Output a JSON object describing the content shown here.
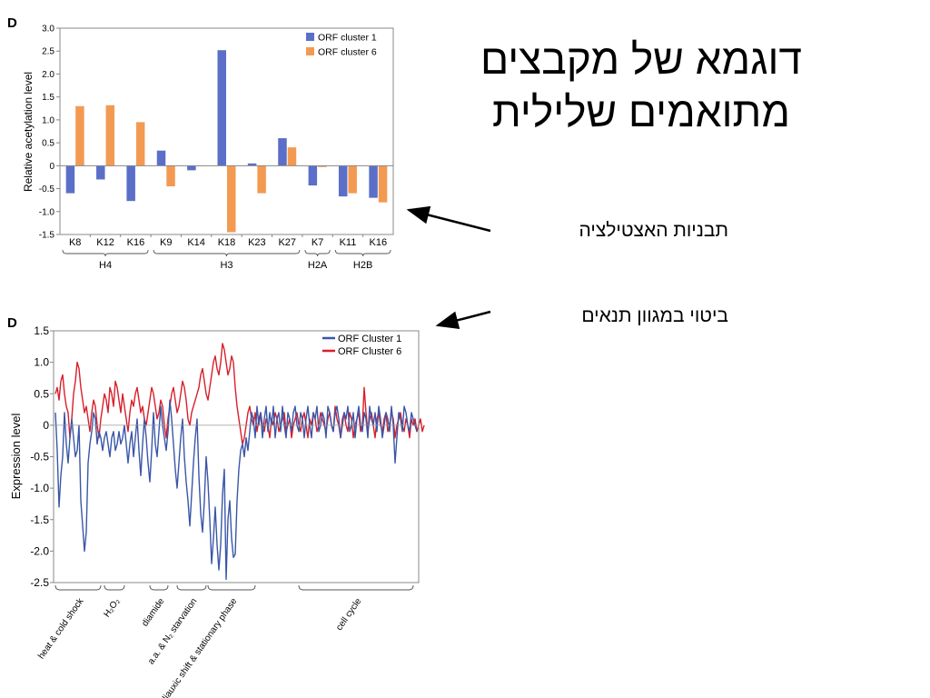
{
  "slide": {
    "title_line1": "דוגמא של מקבצים",
    "title_line2": "מתואמים שלילית",
    "label_acetylation": "תבניות האצטילציה",
    "label_expression": "ביטוי במגוון תנאים"
  },
  "chart_data": [
    {
      "type": "bar",
      "panel_letter": "D",
      "ylabel": "Relative acetylation level",
      "ylim": [
        -1.5,
        3.0
      ],
      "yticks": [
        "-1.5",
        "-1.0",
        "-0.5",
        "0",
        "0.5",
        "1.0",
        "1.5",
        "2.0",
        "2.5",
        "3.0"
      ],
      "categories": [
        "K8",
        "K12",
        "K16",
        "K9",
        "K14",
        "K18",
        "K23",
        "K27",
        "K7",
        "K11",
        "K16"
      ],
      "groups": [
        {
          "label": "H4",
          "start": 0,
          "end": 2
        },
        {
          "label": "H3",
          "start": 3,
          "end": 7
        },
        {
          "label": "H2A",
          "start": 8,
          "end": 8
        },
        {
          "label": "H2B",
          "start": 9,
          "end": 10
        }
      ],
      "series": [
        {
          "name": "ORF cluster 1",
          "color": "#5b6fc8",
          "values": [
            -0.6,
            -0.3,
            -0.77,
            0.33,
            -0.1,
            2.52,
            0.05,
            0.6,
            -0.43,
            -0.67,
            -0.7
          ]
        },
        {
          "name": "ORF cluster 6",
          "color": "#f39a52",
          "values": [
            1.3,
            1.32,
            0.95,
            -0.45,
            0.0,
            -1.45,
            -0.6,
            0.4,
            -0.03,
            -0.6,
            -0.8
          ]
        }
      ],
      "legend_position": "top-right"
    },
    {
      "type": "line",
      "panel_letter": "D",
      "ylabel": "Expression level",
      "ylim": [
        -2.5,
        1.5
      ],
      "yticks": [
        "-2.5",
        "-2.0",
        "-1.5",
        "-1.0",
        "-0.5",
        "0",
        "0.5",
        "1.0",
        "1.5"
      ],
      "conditions": [
        {
          "label": "heat & cold shock",
          "start": 0,
          "end": 25
        },
        {
          "label": "H₂O₂",
          "start": 27,
          "end": 38
        },
        {
          "label": "diamide",
          "start": 52,
          "end": 62
        },
        {
          "label": "a.a. & N₂ starvation",
          "start": 67,
          "end": 83
        },
        {
          "label": "diauxic  shift & stationary phase",
          "start": 84,
          "end": 110
        },
        {
          "label": "cell cycle",
          "start": 134,
          "end": 197
        }
      ],
      "x_count": 200,
      "series": [
        {
          "name": "ORF Cluster 1",
          "color": "#3a56a8",
          "values": [
            0.2,
            -0.4,
            -1.3,
            -0.8,
            -0.5,
            0.2,
            -0.3,
            -0.6,
            -0.2,
            0.1,
            -0.2,
            -0.5,
            -0.4,
            0.0,
            -1.2,
            -1.6,
            -2.0,
            -1.7,
            -0.6,
            -0.3,
            -0.1,
            0.2,
            0.1,
            -0.3,
            -0.1,
            -0.2,
            -0.4,
            -0.2,
            -0.1,
            -0.3,
            -0.5,
            -0.2,
            -0.1,
            -0.4,
            -0.3,
            -0.1,
            -0.3,
            -0.2,
            0.0,
            -0.3,
            -0.6,
            -0.3,
            -0.1,
            -0.5,
            -0.2,
            0.1,
            -0.4,
            -0.8,
            -0.3,
            0.1,
            -0.2,
            -0.6,
            -0.9,
            -0.4,
            0.2,
            -0.3,
            -0.5,
            -0.1,
            0.3,
            0.0,
            -0.2,
            -0.4,
            -0.1,
            0.4,
            0.1,
            -0.3,
            -0.7,
            -1.0,
            -0.6,
            -0.2,
            0.1,
            -0.5,
            -0.9,
            -1.2,
            -1.6,
            -1.1,
            -0.6,
            -0.2,
            0.1,
            -0.8,
            -1.4,
            -1.7,
            -1.2,
            -0.5,
            -0.9,
            -1.5,
            -2.2,
            -1.8,
            -1.3,
            -1.9,
            -2.3,
            -1.9,
            -1.1,
            -0.7,
            -2.45,
            -1.5,
            -1.2,
            -1.8,
            -2.1,
            -2.05,
            -1.2,
            -0.7,
            -0.4,
            -0.3,
            -0.5,
            -0.2,
            -0.4,
            -0.1,
            0.2,
            0.1,
            -0.2,
            0.3,
            0.0,
            0.2,
            -0.2,
            0.1,
            0.3,
            -0.1,
            0.2,
            0.0,
            0.3,
            -0.2,
            0.1,
            0.2,
            -0.1,
            0.3,
            0.0,
            -0.2,
            0.2,
            0.1,
            -0.1,
            0.2,
            0.3,
            0.0,
            -0.1,
            0.2,
            0.1,
            -0.2,
            0.1,
            0.3,
            0.0,
            -0.2,
            0.2,
            0.1,
            0.3,
            -0.1,
            0.0,
            0.2,
            0.1,
            -0.2,
            0.3,
            0.2,
            0.0,
            -0.1,
            0.2,
            0.3,
            0.1,
            -0.2,
            0.0,
            0.2,
            0.1,
            0.3,
            -0.1,
            0.0,
            0.2,
            -0.2,
            0.1,
            0.3,
            0.0,
            -0.1,
            0.2,
            0.1,
            -0.2,
            0.3,
            0.1,
            0.0,
            0.2,
            -0.1,
            0.3,
            0.1,
            -0.2,
            0.0,
            0.2,
            0.1,
            -0.1,
            0.3,
            0.0,
            -0.6,
            -0.2,
            0.2,
            0.1,
            -0.1,
            0.3,
            0.2,
            0.0,
            -0.1,
            0.2,
            0.1,
            0.0,
            -0.1
          ]
        },
        {
          "name": "ORF Cluster 6",
          "color": "#d81f2a",
          "values": [
            0.5,
            0.6,
            0.4,
            0.7,
            0.8,
            0.5,
            0.3,
            0.2,
            -0.2,
            0.1,
            0.5,
            0.7,
            1.0,
            0.9,
            0.6,
            0.4,
            0.2,
            0.3,
            0.1,
            -0.1,
            0.2,
            0.4,
            0.3,
            0.0,
            -0.2,
            0.1,
            0.3,
            0.5,
            0.4,
            0.2,
            0.6,
            0.5,
            0.3,
            0.7,
            0.6,
            0.4,
            0.2,
            0.5,
            0.3,
            0.1,
            -0.1,
            0.2,
            0.4,
            0.3,
            0.5,
            0.6,
            0.4,
            0.2,
            0.3,
            0.1,
            0.0,
            0.2,
            0.4,
            0.6,
            0.5,
            0.3,
            0.1,
            0.2,
            0.4,
            0.3,
            0.0,
            -0.2,
            0.1,
            0.3,
            0.5,
            0.6,
            0.4,
            0.2,
            0.3,
            0.5,
            0.7,
            0.6,
            0.4,
            0.1,
            0.0,
            0.2,
            0.3,
            0.4,
            0.5,
            0.6,
            0.8,
            0.9,
            0.7,
            0.5,
            0.4,
            0.6,
            0.8,
            1.0,
            1.1,
            0.9,
            0.8,
            1.0,
            1.3,
            1.2,
            1.0,
            0.8,
            0.9,
            1.1,
            1.0,
            0.6,
            0.3,
            0.1,
            -0.1,
            -0.3,
            -0.2,
            0.0,
            0.2,
            0.3,
            0.1,
            0.0,
            0.2,
            -0.1,
            0.1,
            0.2,
            0.0,
            -0.1,
            0.1,
            0.0,
            -0.2,
            0.1,
            0.0,
            0.2,
            0.1,
            -0.1,
            0.0,
            0.1,
            0.2,
            -0.1,
            0.0,
            0.1,
            -0.2,
            0.0,
            0.1,
            0.2,
            0.0,
            -0.1,
            0.1,
            0.2,
            0.0,
            -0.2,
            0.1,
            0.0,
            0.2,
            0.1,
            -0.1,
            0.0,
            0.2,
            0.1,
            0.0,
            -0.1,
            0.1,
            0.2,
            0.0,
            -0.1,
            0.3,
            0.1,
            0.0,
            -0.2,
            0.1,
            0.2,
            0.0,
            -0.1,
            0.2,
            0.1,
            -0.2,
            0.0,
            0.1,
            0.2,
            -0.1,
            0.0,
            0.6,
            0.2,
            -0.1,
            0.1,
            0.2,
            0.0,
            -0.2,
            0.1,
            0.2,
            0.0,
            -0.1,
            0.1,
            0.2,
            -0.1,
            0.0,
            0.2,
            0.1,
            -0.2,
            0.0,
            0.1,
            0.2,
            0.0,
            -0.1,
            0.1,
            0.0,
            -0.2,
            0.1,
            0.0,
            0.1,
            -0.1,
            0.0,
            0.1,
            -0.1,
            0.0
          ]
        }
      ],
      "legend_position": "top-right"
    }
  ]
}
